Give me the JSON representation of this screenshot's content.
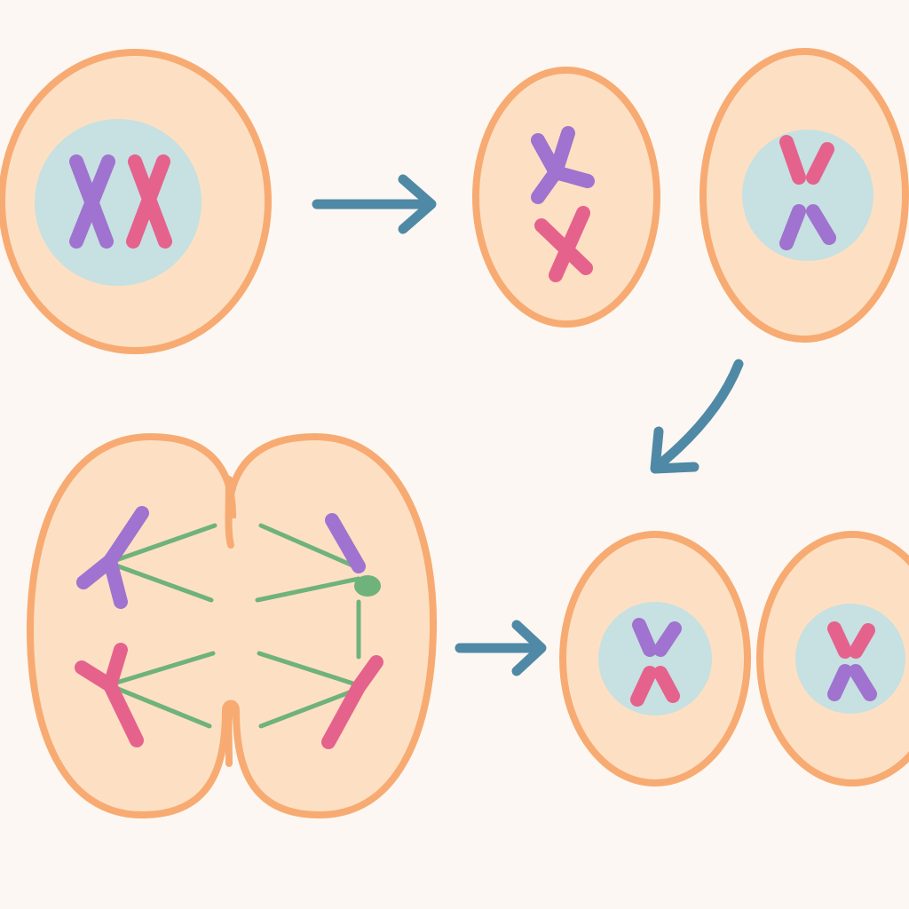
{
  "colors": {
    "background": "#fcf7f2",
    "cell_fill": "#fde0c3",
    "cell_outline": "#f7ab72",
    "nucleus": "#c7e0e1",
    "purple_chromosome": "#9f73cf",
    "pink_chromosome": "#e5628d",
    "spindle": "#6fb27c",
    "arrow": "#4f89a6"
  },
  "diagram": {
    "nodes": [
      {
        "id": "parent-cell",
        "kind": "cell-with-nucleus",
        "chromosomes": [
          "purple",
          "pink"
        ]
      },
      {
        "id": "prophase-cell",
        "kind": "cell-without-nucleus",
        "chromosomes": [
          "purple",
          "pink"
        ]
      },
      {
        "id": "metaphase-cell",
        "kind": "cell-with-nucleus",
        "chromosomes": [
          "pink",
          "purple"
        ]
      },
      {
        "id": "anaphase-dividing-cell",
        "kind": "dividing-cell-with-spindle",
        "chromosomes": [
          "purple",
          "purple",
          "pink",
          "pink"
        ]
      },
      {
        "id": "daughter-cell-left",
        "kind": "cell-with-nucleus",
        "chromosomes": [
          "purple",
          "pink"
        ]
      },
      {
        "id": "daughter-cell-right",
        "kind": "cell-with-nucleus",
        "chromosomes": [
          "pink",
          "purple"
        ]
      }
    ],
    "edges": [
      {
        "from": "parent-cell",
        "to": "prophase-cell",
        "icon": "arrow-right-icon"
      },
      {
        "from": "metaphase-cell",
        "to": "anaphase-dividing-cell",
        "icon": "arrow-curved-down-left-icon"
      },
      {
        "from": "anaphase-dividing-cell",
        "to": "daughter-cell-left",
        "icon": "arrow-right-icon"
      }
    ]
  }
}
